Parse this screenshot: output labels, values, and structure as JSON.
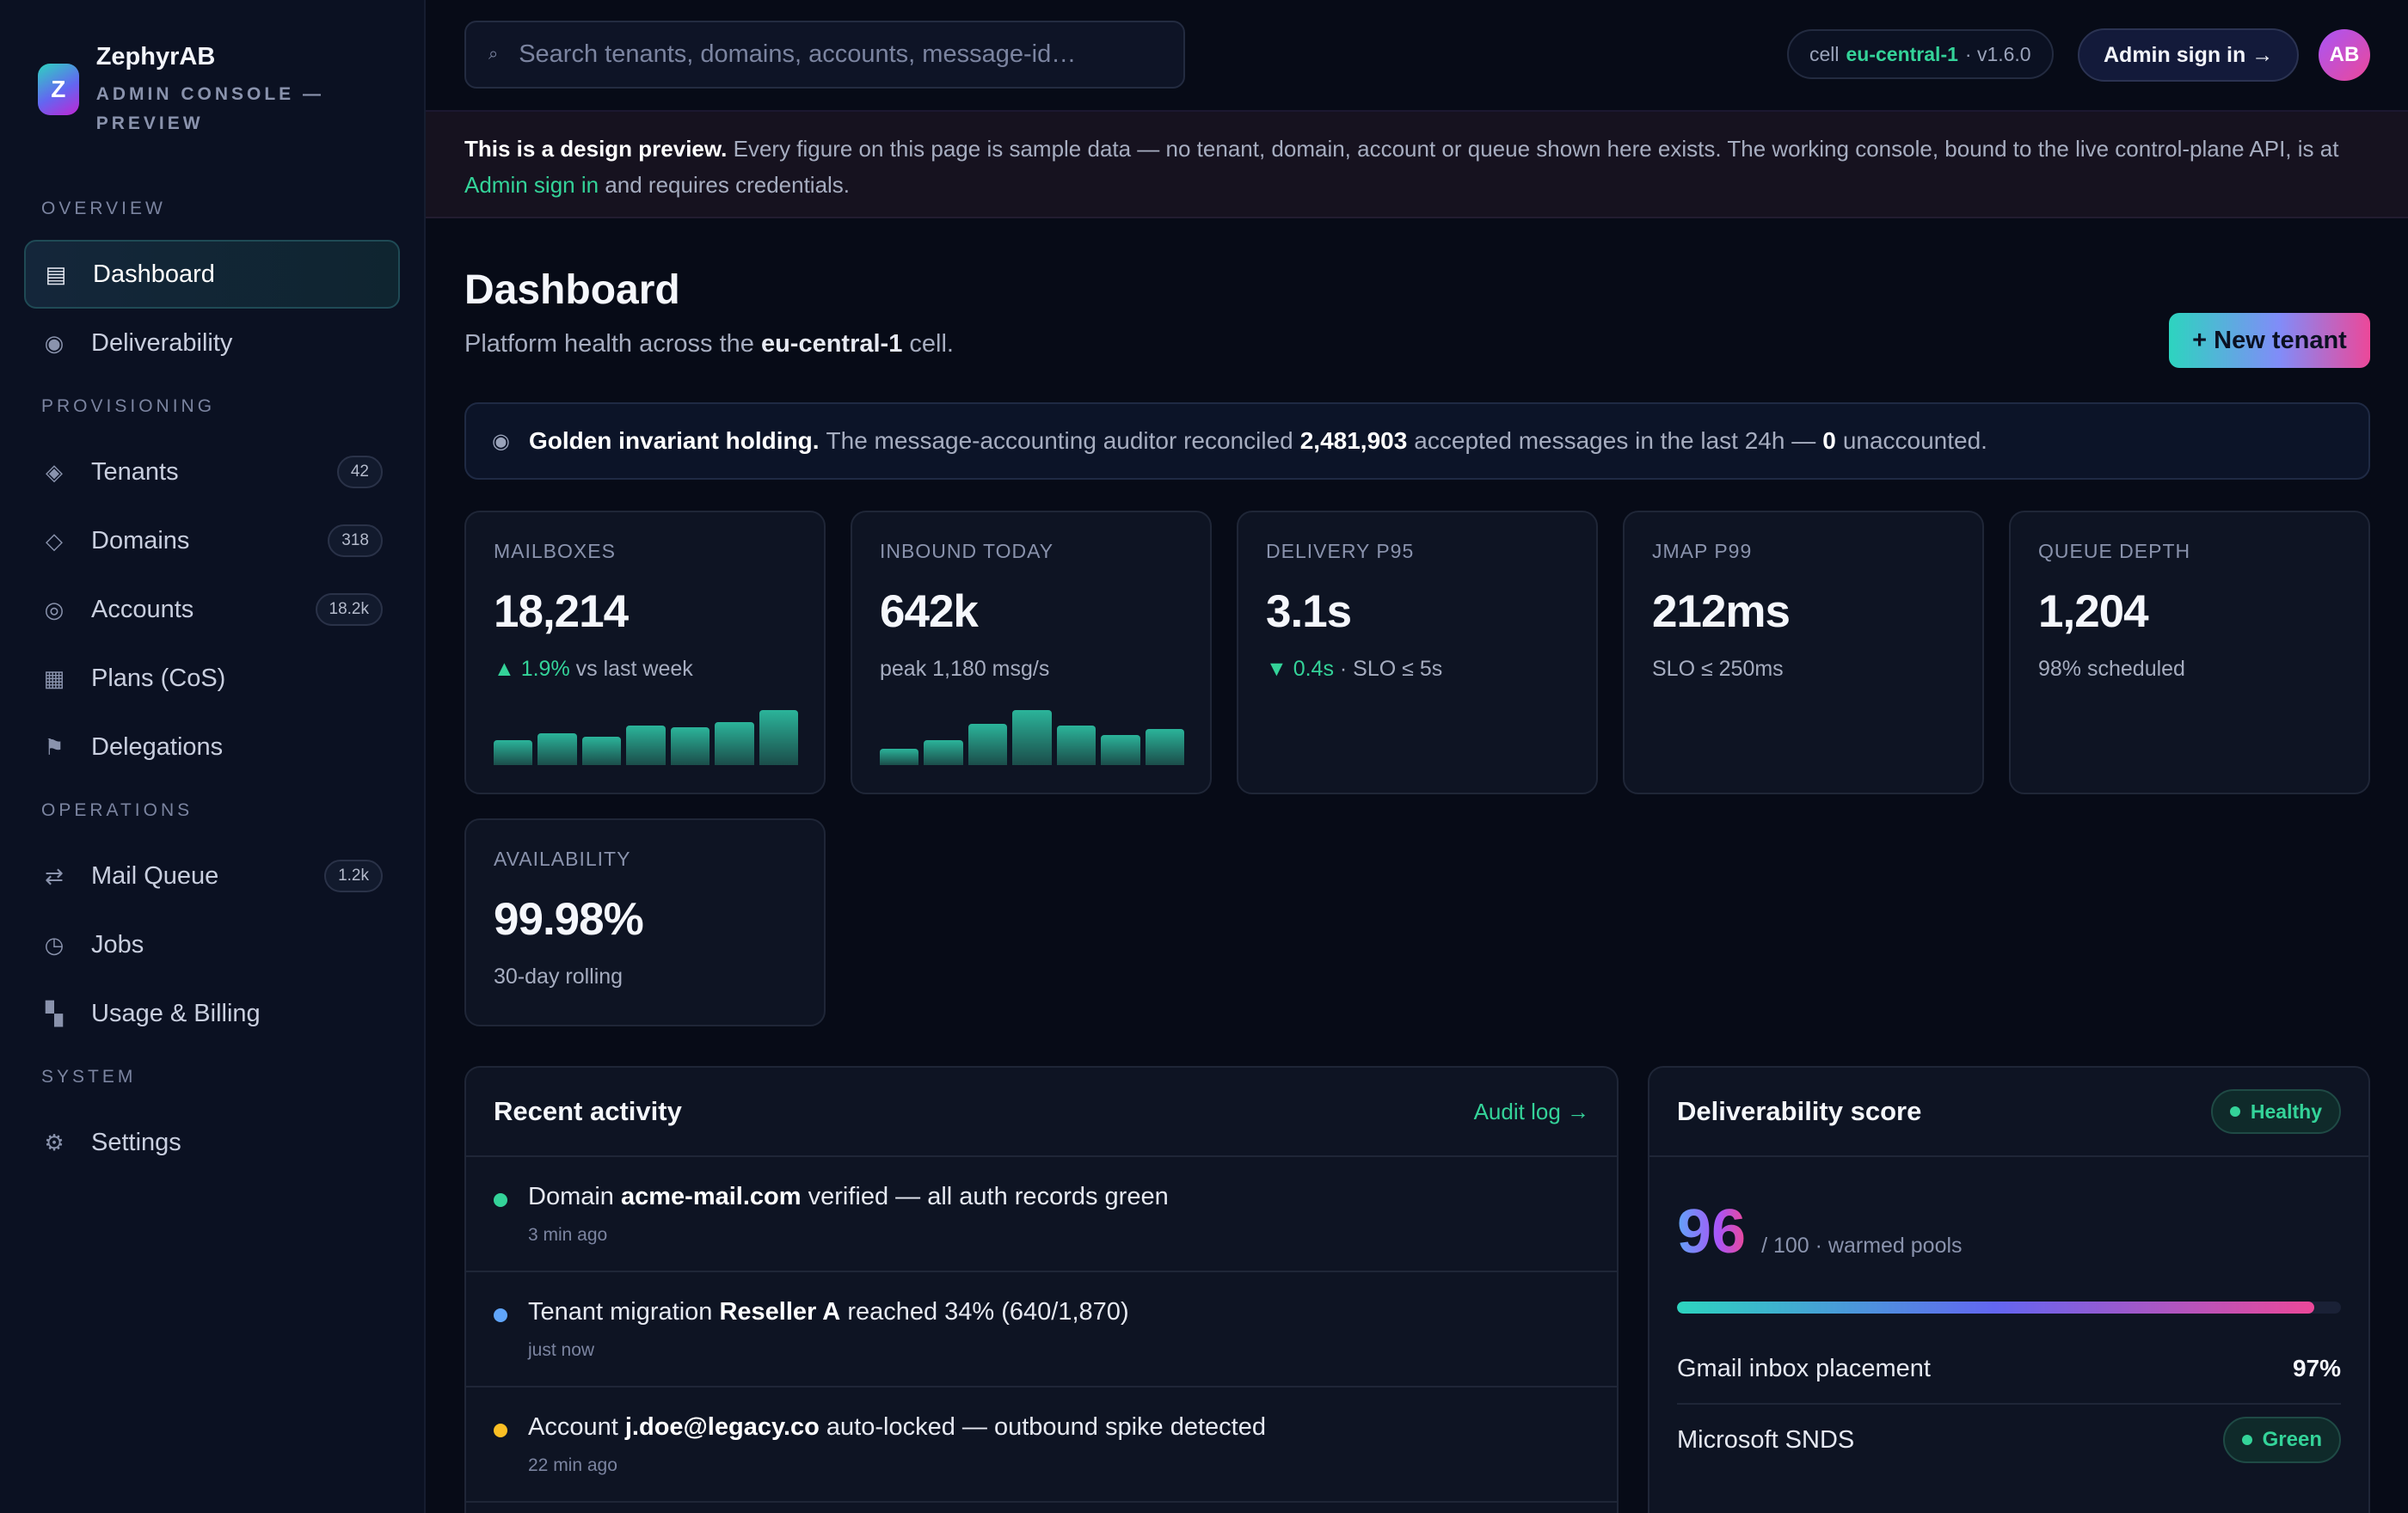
{
  "brand": {
    "name": "ZephyrAB",
    "subtitle": "ADMIN CONSOLE — PREVIEW",
    "logo_letter": "Z"
  },
  "sidebar": {
    "sections": [
      {
        "title": "OVERVIEW",
        "items": [
          {
            "label": "Dashboard",
            "icon": "dashboard-icon",
            "glyph": "▤",
            "active": true
          },
          {
            "label": "Deliverability",
            "icon": "deliverability-icon",
            "glyph": "◉"
          }
        ]
      },
      {
        "title": "PROVISIONING",
        "items": [
          {
            "label": "Tenants",
            "icon": "tenants-icon",
            "glyph": "◈",
            "badge": "42"
          },
          {
            "label": "Domains",
            "icon": "domains-icon",
            "glyph": "◇",
            "badge": "318"
          },
          {
            "label": "Accounts",
            "icon": "accounts-icon",
            "glyph": "◎",
            "badge": "18.2k"
          },
          {
            "label": "Plans (CoS)",
            "icon": "plans-icon",
            "glyph": "▦"
          },
          {
            "label": "Delegations",
            "icon": "flag-icon",
            "glyph": "⚑"
          }
        ]
      },
      {
        "title": "OPERATIONS",
        "items": [
          {
            "label": "Mail Queue",
            "icon": "queue-icon",
            "glyph": "⇄",
            "badge": "1.2k"
          },
          {
            "label": "Jobs",
            "icon": "clock-icon",
            "glyph": "◷"
          },
          {
            "label": "Usage & Billing",
            "icon": "billing-icon",
            "glyph": "▚"
          }
        ]
      },
      {
        "title": "SYSTEM",
        "items": [
          {
            "label": "Settings",
            "icon": "gear-icon",
            "glyph": "⚙"
          }
        ]
      }
    ]
  },
  "topbar": {
    "search_placeholder": "Search tenants, domains, accounts, message-id…",
    "cell_prefix": "cell",
    "cell_name": "eu-central-1",
    "version": "· v1.6.0",
    "signin_label": "Admin sign in →",
    "avatar_initials": "AB"
  },
  "banner": {
    "bold": "This is a design preview.",
    "text": "Every figure on this page is sample data — no tenant, domain, account or queue shown here exists. The working console, bound to the live control-plane API, is at",
    "link": "Admin sign in",
    "tail": "and requires credentials."
  },
  "page": {
    "title": "Dashboard",
    "subtitle_pre": "Platform health across the",
    "subtitle_cell": "eu-central-1",
    "subtitle_post": "cell.",
    "new_tenant_label": "+ New tenant"
  },
  "invariant": {
    "bold": "Golden invariant holding.",
    "pre": "The message-accounting auditor reconciled",
    "count": "2,481,903",
    "mid": "accepted messages in the last 24h —",
    "unaccounted": "0",
    "post": "unaccounted."
  },
  "stats": [
    {
      "label": "MAILBOXES",
      "value": "18,214",
      "delta": "▲ 1.9%",
      "sub": "vs last week",
      "spark": [
        0.45,
        0.58,
        0.52,
        0.72,
        0.68,
        0.78,
        1.0
      ]
    },
    {
      "label": "INBOUND TODAY",
      "value": "642k",
      "sub": "peak 1,180 msg/s",
      "spark": [
        0.3,
        0.45,
        0.75,
        1.0,
        0.72,
        0.55,
        0.65
      ]
    },
    {
      "label": "DELIVERY P95",
      "value": "3.1s",
      "delta": "▼ 0.4s",
      "sub": "· SLO ≤ 5s"
    },
    {
      "label": "JMAP P99",
      "value": "212ms",
      "sub": "SLO ≤ 250ms"
    },
    {
      "label": "QUEUE DEPTH",
      "value": "1,204",
      "sub": "98% scheduled"
    },
    {
      "label": "AVAILABILITY",
      "value": "99.98%",
      "sub": "30-day rolling"
    }
  ],
  "activity": {
    "title": "Recent activity",
    "link": "Audit log →",
    "items": [
      {
        "pre": "Domain",
        "bold": "acme-mail.com",
        "post": "verified — all auth records green",
        "time": "3 min ago",
        "color": "#34d399"
      },
      {
        "pre": "Tenant migration",
        "bold": "Reseller A",
        "post": "reached 34% (640/1,870)",
        "time": "just now",
        "color": "#60a5fa"
      },
      {
        "pre": "Account",
        "bold": "j.doe@legacy.co",
        "post": "auto-locked — outbound spike detected",
        "time": "22 min ago",
        "color": "#fbbf24"
      }
    ]
  },
  "deliverability": {
    "title": "Deliverability score",
    "status": "Healthy",
    "score": "96",
    "score_sub": "/ 100 · warmed pools",
    "score_fraction": 0.96,
    "metrics": [
      {
        "label": "Gmail inbox placement",
        "value": "97%"
      },
      {
        "label": "Microsoft SNDS",
        "pill": "Green"
      }
    ]
  },
  "colors": {
    "accent": "#34d399",
    "background": "#070b17",
    "card": "#0e1423"
  }
}
